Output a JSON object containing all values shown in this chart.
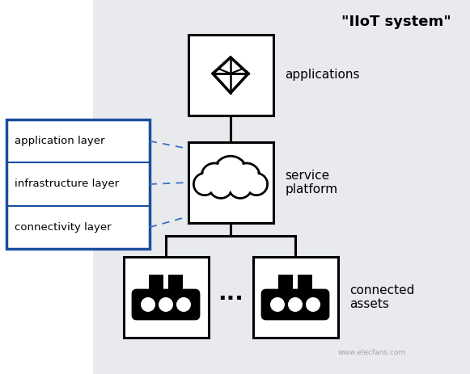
{
  "bg_color": "#e8eaed",
  "white": "#ffffff",
  "black": "#000000",
  "blue": "#1a4fa0",
  "dashed_blue": "#3a6fc4",
  "title": "\"IIoT system\"",
  "label_applications": "applications",
  "label_service_platform": "service\nplatform",
  "label_connected_assets": "connected\nassets",
  "layer_labels": [
    "application layer",
    "infrastructure layer",
    "connectivity layer"
  ],
  "watermark": "www.elecfans.com"
}
